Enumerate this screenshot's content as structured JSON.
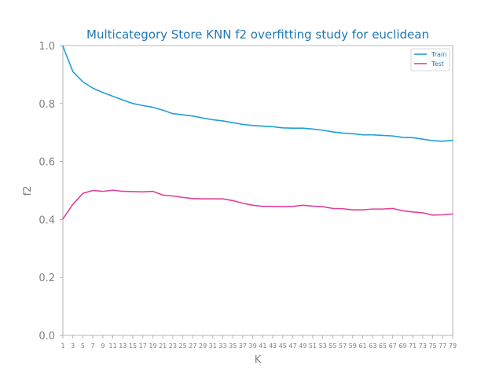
{
  "chart_data": {
    "type": "line",
    "title": "Multicategory Store KNN f2 overfitting study for euclidean",
    "xlabel": "K",
    "ylabel": "f2",
    "x": [
      1,
      3,
      5,
      7,
      9,
      11,
      13,
      15,
      17,
      19,
      21,
      23,
      25,
      27,
      29,
      31,
      33,
      35,
      37,
      39,
      41,
      43,
      45,
      47,
      49,
      51,
      53,
      55,
      57,
      59,
      61,
      63,
      65,
      67,
      69,
      71,
      73,
      75,
      77,
      79
    ],
    "xticks": [
      "1",
      "3",
      "5",
      "7",
      "9",
      "11",
      "13",
      "15",
      "17",
      "19",
      "21",
      "23",
      "25",
      "27",
      "29",
      "31",
      "33",
      "35",
      "37",
      "39",
      "41",
      "43",
      "45",
      "47",
      "49",
      "51",
      "53",
      "55",
      "57",
      "59",
      "61",
      "63",
      "65",
      "67",
      "69",
      "71",
      "73",
      "75",
      "77",
      "79"
    ],
    "yticks": [
      "0.0",
      "0.2",
      "0.4",
      "0.6",
      "0.8",
      "1.0"
    ],
    "ylim": [
      0,
      1
    ],
    "xlim": [
      1,
      79
    ],
    "grid": false,
    "legend_position": "top-right",
    "series": [
      {
        "name": "Train",
        "color": "#1f9fd8",
        "values": [
          0.998,
          0.91,
          0.875,
          0.853,
          0.838,
          0.825,
          0.812,
          0.8,
          0.793,
          0.787,
          0.777,
          0.765,
          0.761,
          0.757,
          0.75,
          0.744,
          0.74,
          0.734,
          0.728,
          0.724,
          0.722,
          0.72,
          0.716,
          0.715,
          0.715,
          0.712,
          0.708,
          0.702,
          0.698,
          0.696,
          0.692,
          0.692,
          0.69,
          0.688,
          0.683,
          0.682,
          0.677,
          0.672,
          0.67,
          0.673
        ]
      },
      {
        "name": "Test",
        "color": "#e0409a",
        "values": [
          0.402,
          0.452,
          0.49,
          0.5,
          0.497,
          0.501,
          0.497,
          0.496,
          0.495,
          0.497,
          0.484,
          0.481,
          0.476,
          0.472,
          0.471,
          0.471,
          0.471,
          0.465,
          0.456,
          0.449,
          0.445,
          0.445,
          0.444,
          0.445,
          0.449,
          0.446,
          0.444,
          0.438,
          0.437,
          0.433,
          0.433,
          0.436,
          0.436,
          0.438,
          0.43,
          0.426,
          0.423,
          0.415,
          0.416,
          0.419
        ]
      }
    ]
  }
}
